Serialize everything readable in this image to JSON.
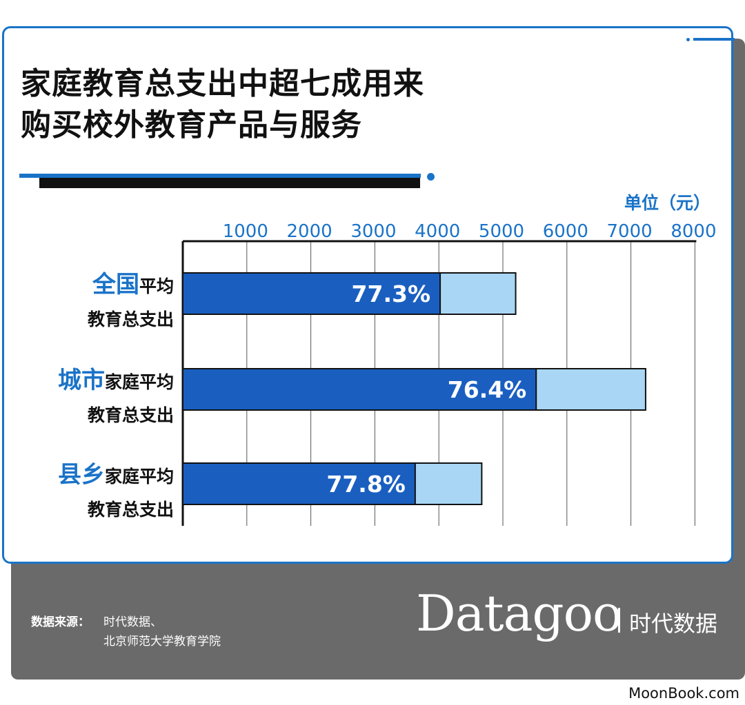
{
  "title": {
    "line1": "家庭教育总支出中超七成用来",
    "line2": "购买校外教育产品与服务"
  },
  "colors": {
    "accent": "#1a73c8",
    "bar_dark": "#1a5fc0",
    "bar_light": "#a9d6f5",
    "footer_bg": "#6a6a6a"
  },
  "chart_data": {
    "type": "bar",
    "orientation": "horizontal",
    "stacked": true,
    "unit_label": "单位（元）",
    "x_ticks": [
      1000,
      2000,
      3000,
      4000,
      5000,
      6000,
      7000,
      8000
    ],
    "xlim": [
      0,
      8000
    ],
    "categories": [
      {
        "highlight": "全国",
        "rest": "平均",
        "line2": "教育总支出"
      },
      {
        "highlight": "城市",
        "rest": "家庭平均",
        "line2": "教育总支出"
      },
      {
        "highlight": "县乡",
        "rest": "家庭平均",
        "line2": "教育总支出"
      }
    ],
    "total_values": [
      5200,
      7230,
      4670
    ],
    "outside_school_values": [
      4020,
      5520,
      3630
    ],
    "share_labels": [
      "77.3%",
      "76.4%",
      "77.8%"
    ],
    "grid": true
  },
  "footer": {
    "source_label": "数据来源：",
    "source_line1": "时代数据、",
    "source_line2": "北京师范大学教育学院",
    "brand": "Datagoo",
    "brand_cn": "时代数据"
  },
  "watermark": "MoonBook.com"
}
